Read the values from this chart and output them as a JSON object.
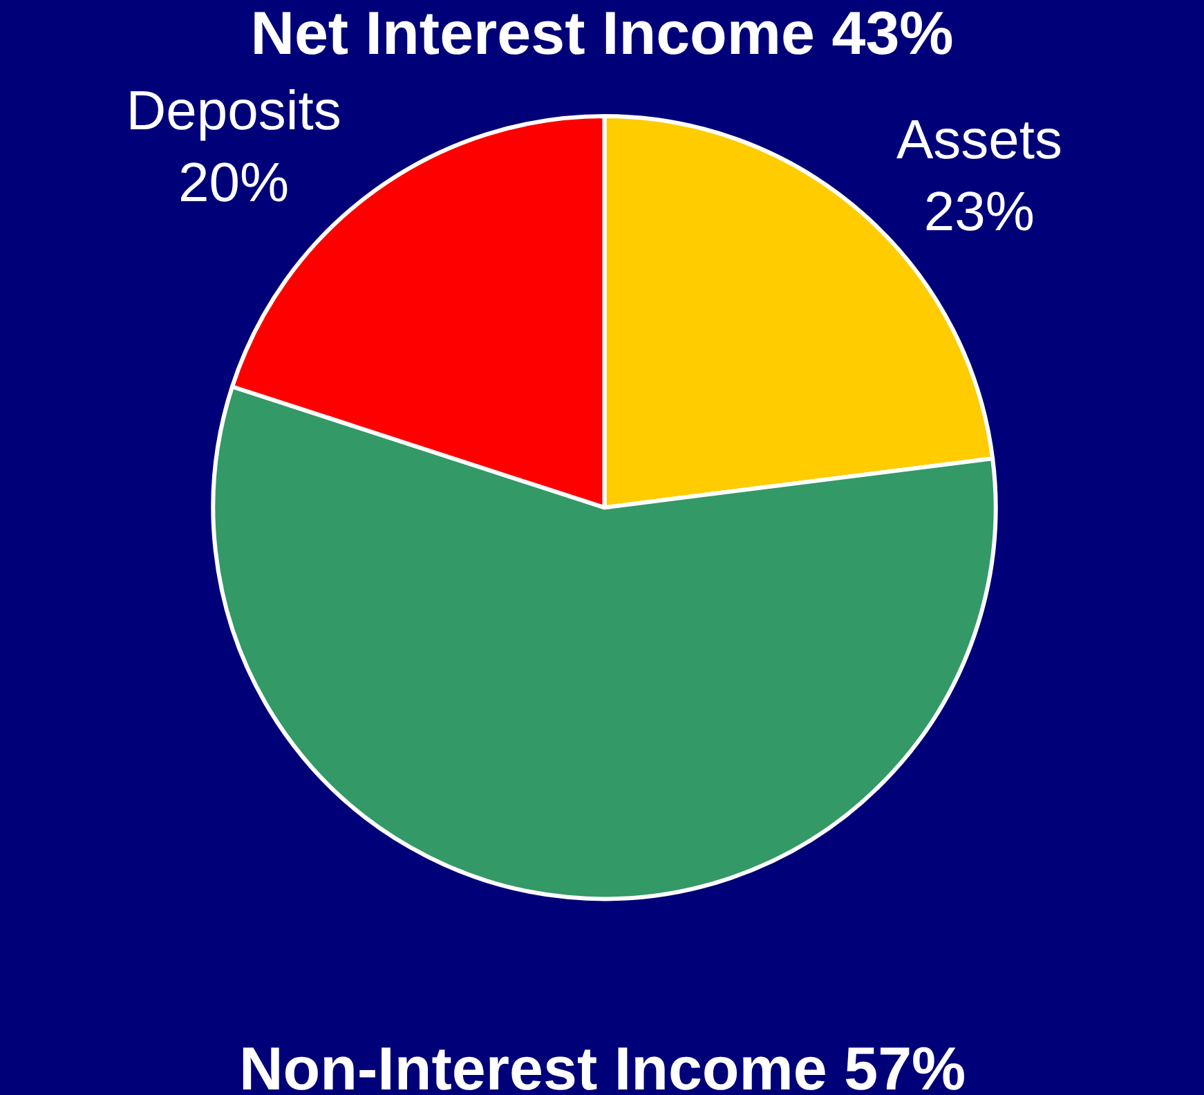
{
  "chart_data": {
    "type": "pie",
    "title": "Net Interest Income 43%",
    "categories": [
      "Assets",
      "Non-Interest Income",
      "Deposits"
    ],
    "values": [
      23,
      57,
      20
    ],
    "value_labels": [
      "23%",
      "57%",
      "20%"
    ],
    "colors": [
      "#ffcc00",
      "#339966",
      "#ff0000"
    ],
    "legend": false
  }
}
